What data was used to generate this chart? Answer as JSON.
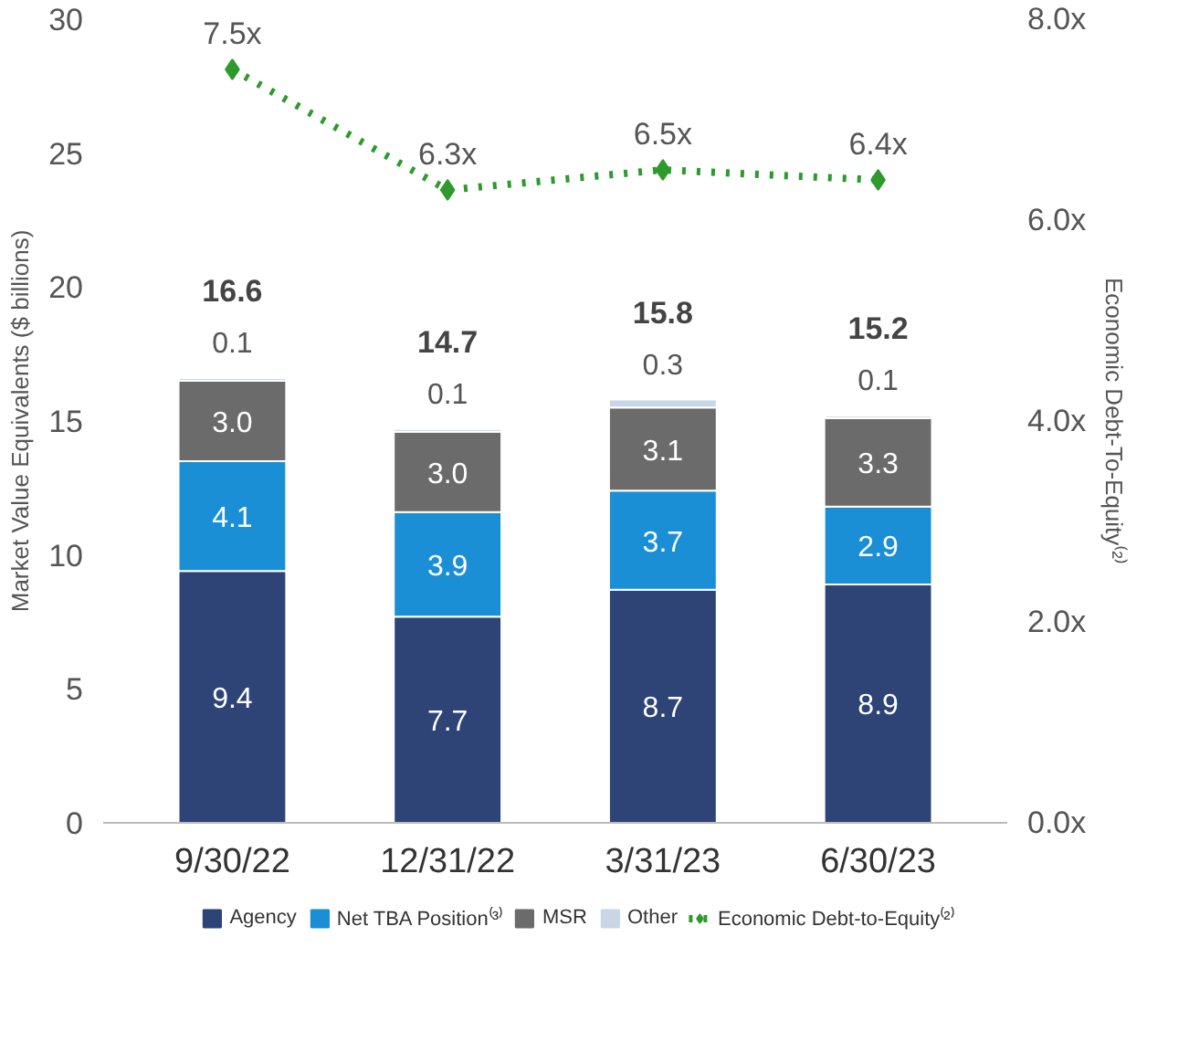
{
  "chart_data": {
    "type": "bar",
    "stacked": true,
    "categories": [
      "9/30/22",
      "12/31/22",
      "3/31/23",
      "6/30/23"
    ],
    "ylabel": "Market Value Equivalents ($ billions)",
    "y2label": "Economic Debt-To-Equity⁽²⁾",
    "ylim": [
      0,
      30
    ],
    "yticks": [
      0,
      5,
      10,
      15,
      20,
      25,
      30
    ],
    "y2lim": [
      0,
      8
    ],
    "y2ticks": [
      {
        "value": 0,
        "label": "0.0x"
      },
      {
        "value": 2,
        "label": "2.0x"
      },
      {
        "value": 4,
        "label": "4.0x"
      },
      {
        "value": 6,
        "label": "6.0x"
      },
      {
        "value": 8,
        "label": "8.0x"
      }
    ],
    "series": [
      {
        "name": "Agency",
        "color": "#2e4476",
        "values": [
          9.4,
          7.7,
          8.7,
          8.9
        ],
        "value_labels": [
          "9.4",
          "7.7",
          "8.7",
          "8.9"
        ]
      },
      {
        "name": "Net TBA Position⁽³⁾",
        "color": "#1a8fd6",
        "values": [
          4.1,
          3.9,
          3.7,
          2.9
        ],
        "value_labels": [
          "4.1",
          "3.9",
          "3.7",
          "2.9"
        ]
      },
      {
        "name": "MSR",
        "color": "#6b6b6b",
        "values": [
          3.0,
          3.0,
          3.1,
          3.3
        ],
        "value_labels": [
          "3.0",
          "3.0",
          "3.1",
          "3.3"
        ]
      },
      {
        "name": "Other",
        "color": "#c9d6e6",
        "values": [
          0.1,
          0.1,
          0.3,
          0.1
        ],
        "value_labels": [
          "0.1",
          "0.1",
          "0.3",
          "0.1"
        ]
      },
      {
        "name": "Economic Debt-to-Equity⁽²⁾",
        "type": "line",
        "axis": "y2",
        "color": "#2e9a2e",
        "marker": "diamond",
        "line_style": "dotted",
        "values": [
          7.5,
          6.3,
          6.5,
          6.4
        ],
        "value_labels": [
          "7.5x",
          "6.3x",
          "6.5x",
          "6.4x"
        ]
      }
    ],
    "totals": [
      "16.6",
      "14.7",
      "15.8",
      "15.2"
    ],
    "grid": false,
    "legend": "bottom"
  }
}
